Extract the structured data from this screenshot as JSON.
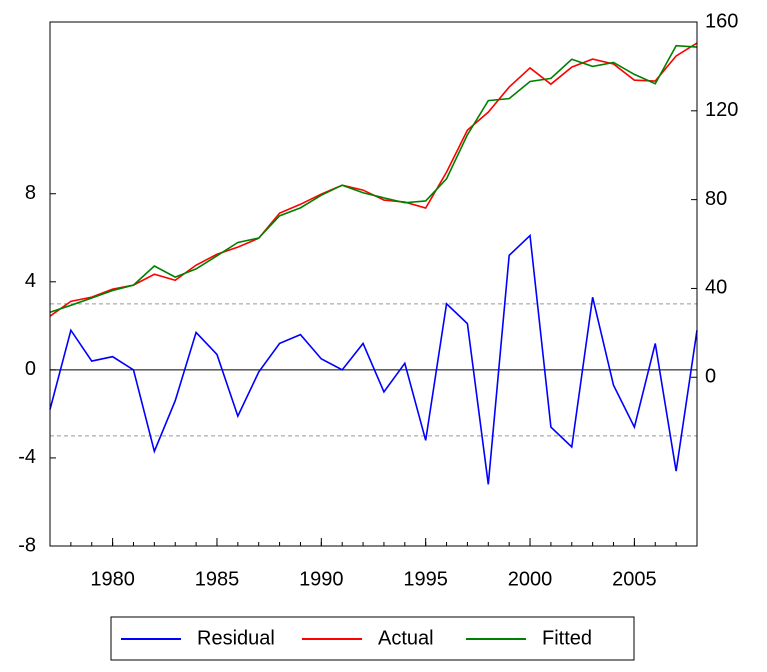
{
  "chart_data": {
    "type": "line",
    "x": [
      1977,
      1978,
      1979,
      1980,
      1981,
      1982,
      1983,
      1984,
      1985,
      1986,
      1987,
      1988,
      1989,
      1990,
      1991,
      1992,
      1993,
      1994,
      1995,
      1996,
      1997,
      1998,
      1999,
      2000,
      2001,
      2002,
      2003,
      2004,
      2005,
      2006,
      2007,
      2008
    ],
    "xlim": [
      1977,
      2008
    ],
    "xticks": [
      1980,
      1985,
      1990,
      1995,
      2000,
      2005
    ],
    "ylim": [
      -8,
      15.8
    ],
    "yticks": [
      -8,
      -4,
      0,
      4,
      8
    ],
    "y2lim": [
      -76,
      160
    ],
    "y2ticks": [
      0,
      40,
      80,
      120,
      160
    ],
    "reference_lines": [
      3,
      -3
    ],
    "series": [
      {
        "name": "Residual",
        "color": "#0000ff",
        "axis": "y",
        "values": [
          -1.8,
          1.8,
          0.4,
          0.6,
          0.0,
          -3.7,
          -1.4,
          1.7,
          0.7,
          -2.1,
          -0.1,
          1.2,
          1.6,
          0.5,
          0.0,
          1.2,
          -1.0,
          0.3,
          -3.2,
          3.0,
          2.1,
          -5.2,
          5.2,
          6.1,
          -2.6,
          -3.5,
          3.3,
          -0.7,
          -2.6,
          1.2,
          -4.6,
          1.8
        ]
      },
      {
        "name": "Actual",
        "color": "#ff0000",
        "axis": "y2",
        "values": [
          27.5,
          34.2,
          36.1,
          39.7,
          41.5,
          46.4,
          43.7,
          50.5,
          55.4,
          58.6,
          62.6,
          73.9,
          77.9,
          82.5,
          86.5,
          84.3,
          79.8,
          78.9,
          76.2,
          92.4,
          111.3,
          119.4,
          130.7,
          139.3,
          132.0,
          139.7,
          143.3,
          141.1,
          133.8,
          133.4,
          144.7,
          150.5
        ]
      },
      {
        "name": "Fitted",
        "color": "#008000",
        "axis": "y2",
        "values": [
          29.3,
          32.4,
          35.7,
          39.1,
          41.5,
          50.1,
          45.1,
          48.8,
          54.7,
          60.7,
          62.7,
          72.7,
          76.3,
          82.0,
          86.5,
          83.1,
          80.8,
          78.6,
          79.4,
          89.4,
          109.2,
          124.6,
          125.5,
          133.2,
          134.6,
          143.2,
          140.0,
          141.8,
          136.4,
          132.2,
          149.3,
          148.7
        ]
      }
    ]
  }
}
